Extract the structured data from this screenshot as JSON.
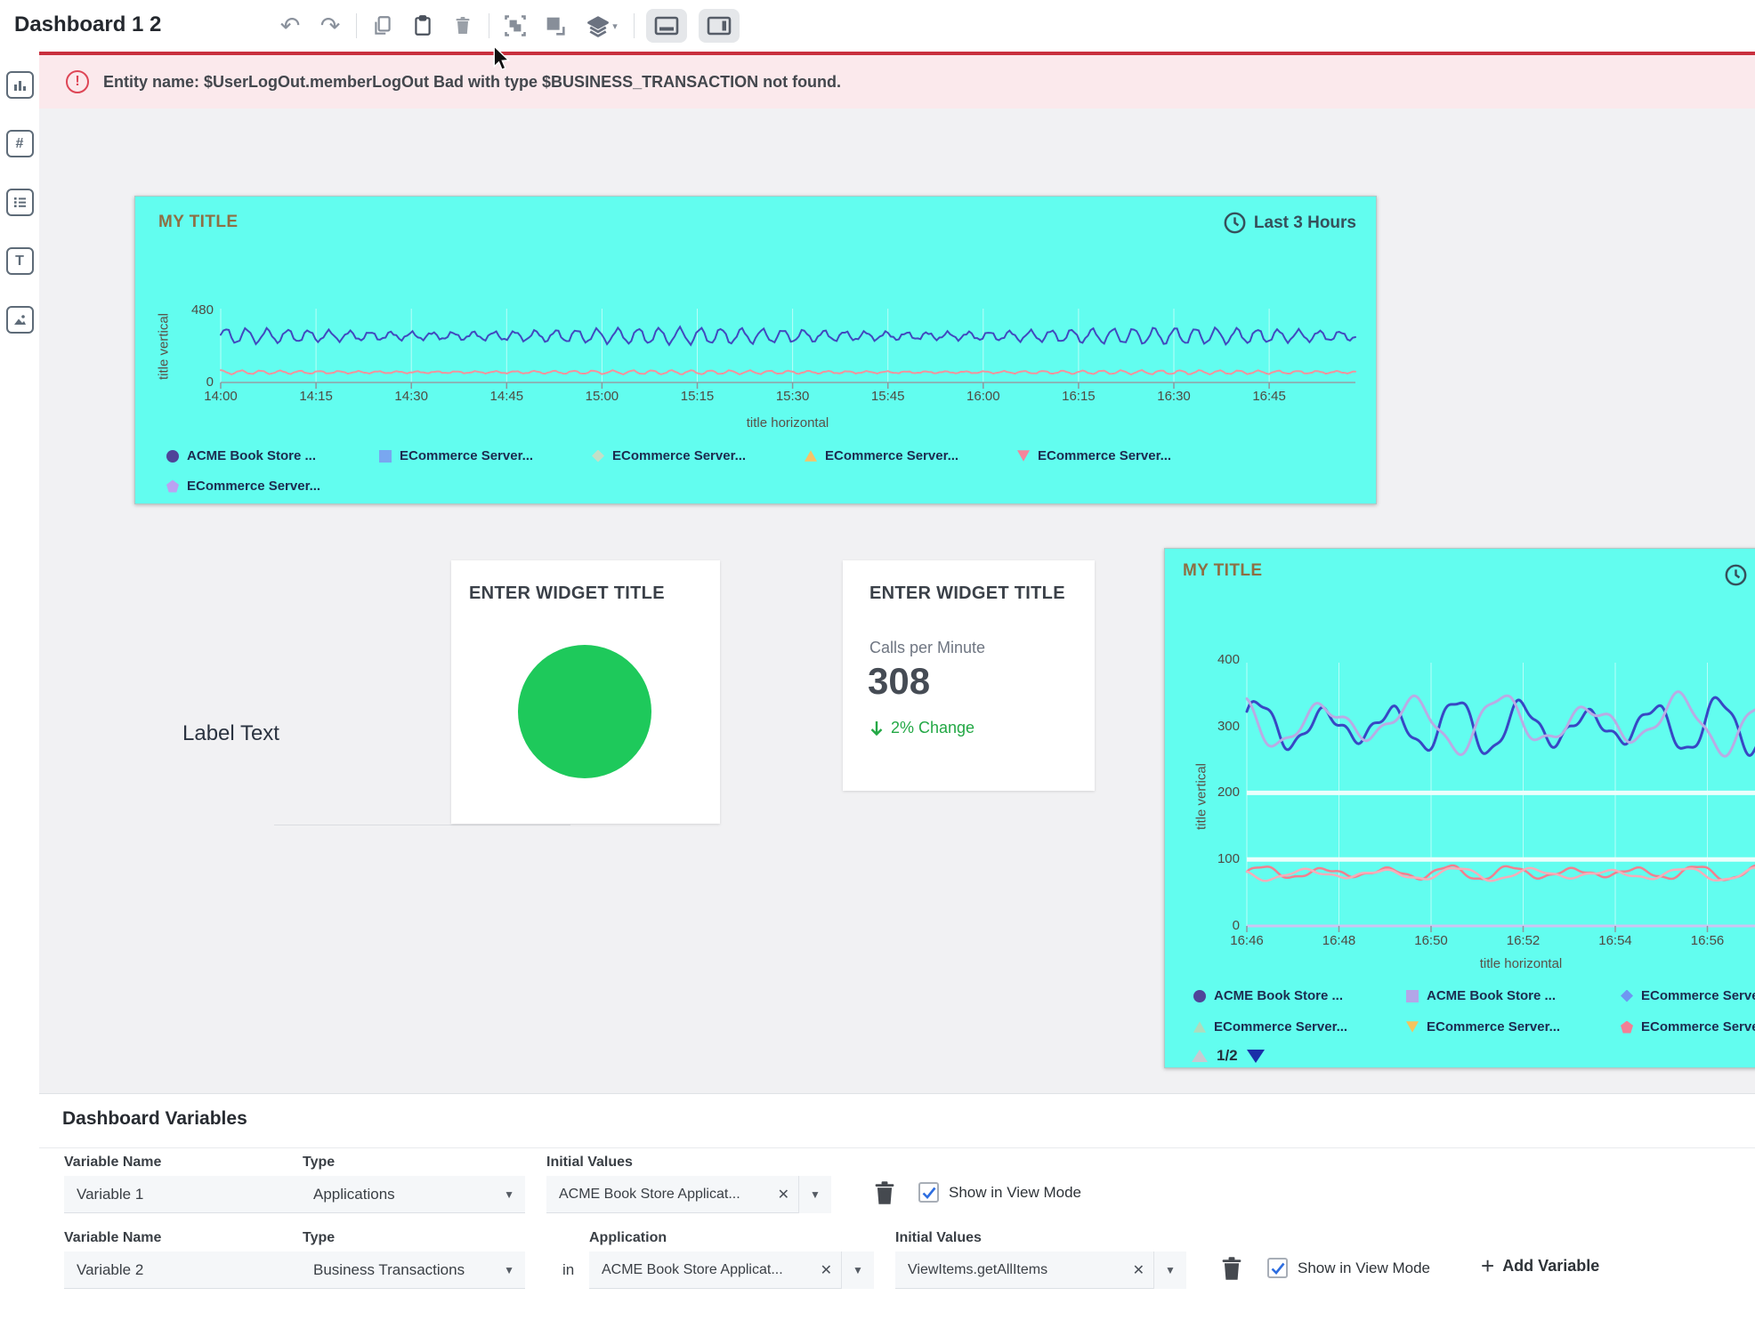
{
  "toolbar": {
    "title": "Dashboard 1 2"
  },
  "banner": {
    "text": "Entity name: $UserLogOut.memberLogOut Bad with type $BUSINESS_TRANSACTION not found."
  },
  "sidebar": {
    "icons": [
      "chart-widget",
      "number-widget",
      "list-widget",
      "text-widget",
      "image-widget"
    ]
  },
  "canvas": {
    "label_widget": {
      "text": "Label Text"
    },
    "health_widget": {
      "title": "ENTER WIDGET TITLE",
      "status_color": "#1EC95B"
    },
    "metric_widget": {
      "title": "ENTER WIDGET TITLE",
      "metric_label": "Calls per Minute",
      "value": "308",
      "change_text": "2% Change",
      "change_color": "#23A845"
    }
  },
  "chart_data": [
    {
      "type": "line",
      "title": "MY TITLE",
      "time_range": "Last 3 Hours",
      "xlabel": "title horizontal",
      "ylabel": "title vertical",
      "x_ticks": [
        "14:00",
        "14:15",
        "14:30",
        "14:45",
        "15:00",
        "15:15",
        "15:30",
        "15:45",
        "16:00",
        "16:15",
        "16:30",
        "16:45"
      ],
      "y_ticks": [
        480,
        0
      ],
      "ylim": [
        0,
        480
      ],
      "background": "#62FDEF",
      "grid": "off",
      "legend_position": "bottom",
      "legend": [
        {
          "label": "ACME Book Store ...",
          "marker": "circle",
          "color": "#4F4499"
        },
        {
          "label": "ECommerce Server...",
          "marker": "square",
          "color": "#79A7F0"
        },
        {
          "label": "ECommerce Server...",
          "marker": "diamond",
          "color": "#C3E0C8"
        },
        {
          "label": "ECommerce Server...",
          "marker": "triangle-up",
          "color": "#F6C468"
        },
        {
          "label": "ECommerce Server...",
          "marker": "triangle-down",
          "color": "#F4849B"
        },
        {
          "label": "ECommerce Server...",
          "marker": "pentagon",
          "color": "#BBA2F2"
        }
      ],
      "lines": [
        {
          "name": "ACME Book Store ...",
          "color": "#4149BE",
          "mean": 310,
          "amplitude": 52,
          "cycles": 55,
          "phase": 0,
          "width": 2
        },
        {
          "name": "ECommerce Server...",
          "color": "#F2939D",
          "mean": 68,
          "amplitude": 13,
          "cycles": 58,
          "phase": 1.3,
          "width": 2
        }
      ]
    },
    {
      "type": "line",
      "title": "MY TITLE",
      "time_range": "",
      "xlabel": "title horizontal",
      "ylabel": "title vertical",
      "x_ticks": [
        "16:46",
        "16:48",
        "16:50",
        "16:52",
        "16:54",
        "16:56"
      ],
      "y_ticks": [
        400,
        300,
        200,
        100,
        0
      ],
      "ylim": [
        0,
        470
      ],
      "background": "#62FDEF",
      "grid": "on",
      "gridlines": [
        {
          "value": 200,
          "color": "#EAFFFC",
          "width": 5
        },
        {
          "value": 100,
          "color": "#EAFFFC",
          "width": 5
        }
      ],
      "legend_position": "bottom",
      "legend": [
        {
          "label": "ACME Book Store ...",
          "marker": "circle",
          "color": "#4F4499"
        },
        {
          "label": "ACME Book Store ...",
          "marker": "square",
          "color": "#B3A6E8"
        },
        {
          "label": "ECommerce Server...",
          "marker": "diamond",
          "color": "#6F96F2"
        },
        {
          "label": "ECommerce Server...",
          "marker": "triangle-up",
          "color": "#AFDCBE"
        },
        {
          "label": "ECommerce Server...",
          "marker": "triangle-down",
          "color": "#F5C35E"
        },
        {
          "label": "ECommerce Server...",
          "marker": "pentagon",
          "color": "#F37F96"
        }
      ],
      "lines": [
        {
          "name": "ACME Book Store ...",
          "color": "#3847C4",
          "mean": 300,
          "amplitude": 42,
          "cycles": 8.5,
          "phase": 0.4,
          "width": 3
        },
        {
          "name": "ACME Book Store ...",
          "color": "#B9ABE4",
          "mean": 306,
          "amplitude": 44,
          "cycles": 6.3,
          "phase": 2.4,
          "width": 3
        },
        {
          "name": "ECommerce Server...",
          "color": "#F2808F",
          "mean": 80,
          "amplitude": 11,
          "cycles": 9,
          "phase": 0,
          "width": 2.5
        },
        {
          "name": "ECommerce Server...",
          "color": "#F6ADB9",
          "mean": 78,
          "amplitude": 10,
          "cycles": 7.4,
          "phase": 2.9,
          "width": 2.5
        }
      ],
      "pagination": {
        "current": "1/2"
      }
    }
  ],
  "variables_panel": {
    "title": "Dashboard Variables",
    "row1": {
      "name_label": "Variable Name",
      "name_value": "Variable 1",
      "type_label": "Type",
      "type_value": "Applications",
      "initial_label": "Initial Values",
      "initial_value": "ACME Book Store Applicat...",
      "show_label": "Show in View Mode"
    },
    "row2": {
      "name_label": "Variable Name",
      "name_value": "Variable 2",
      "type_label": "Type",
      "type_value": "Business Transactions",
      "in_label": "in",
      "app_label": "Application",
      "app_value": "ACME Book Store Applicat...",
      "initial_label": "Initial Values",
      "initial_value": "ViewItems.getAllItems",
      "show_label": "Show in View Mode"
    },
    "add_label": "Add Variable"
  }
}
